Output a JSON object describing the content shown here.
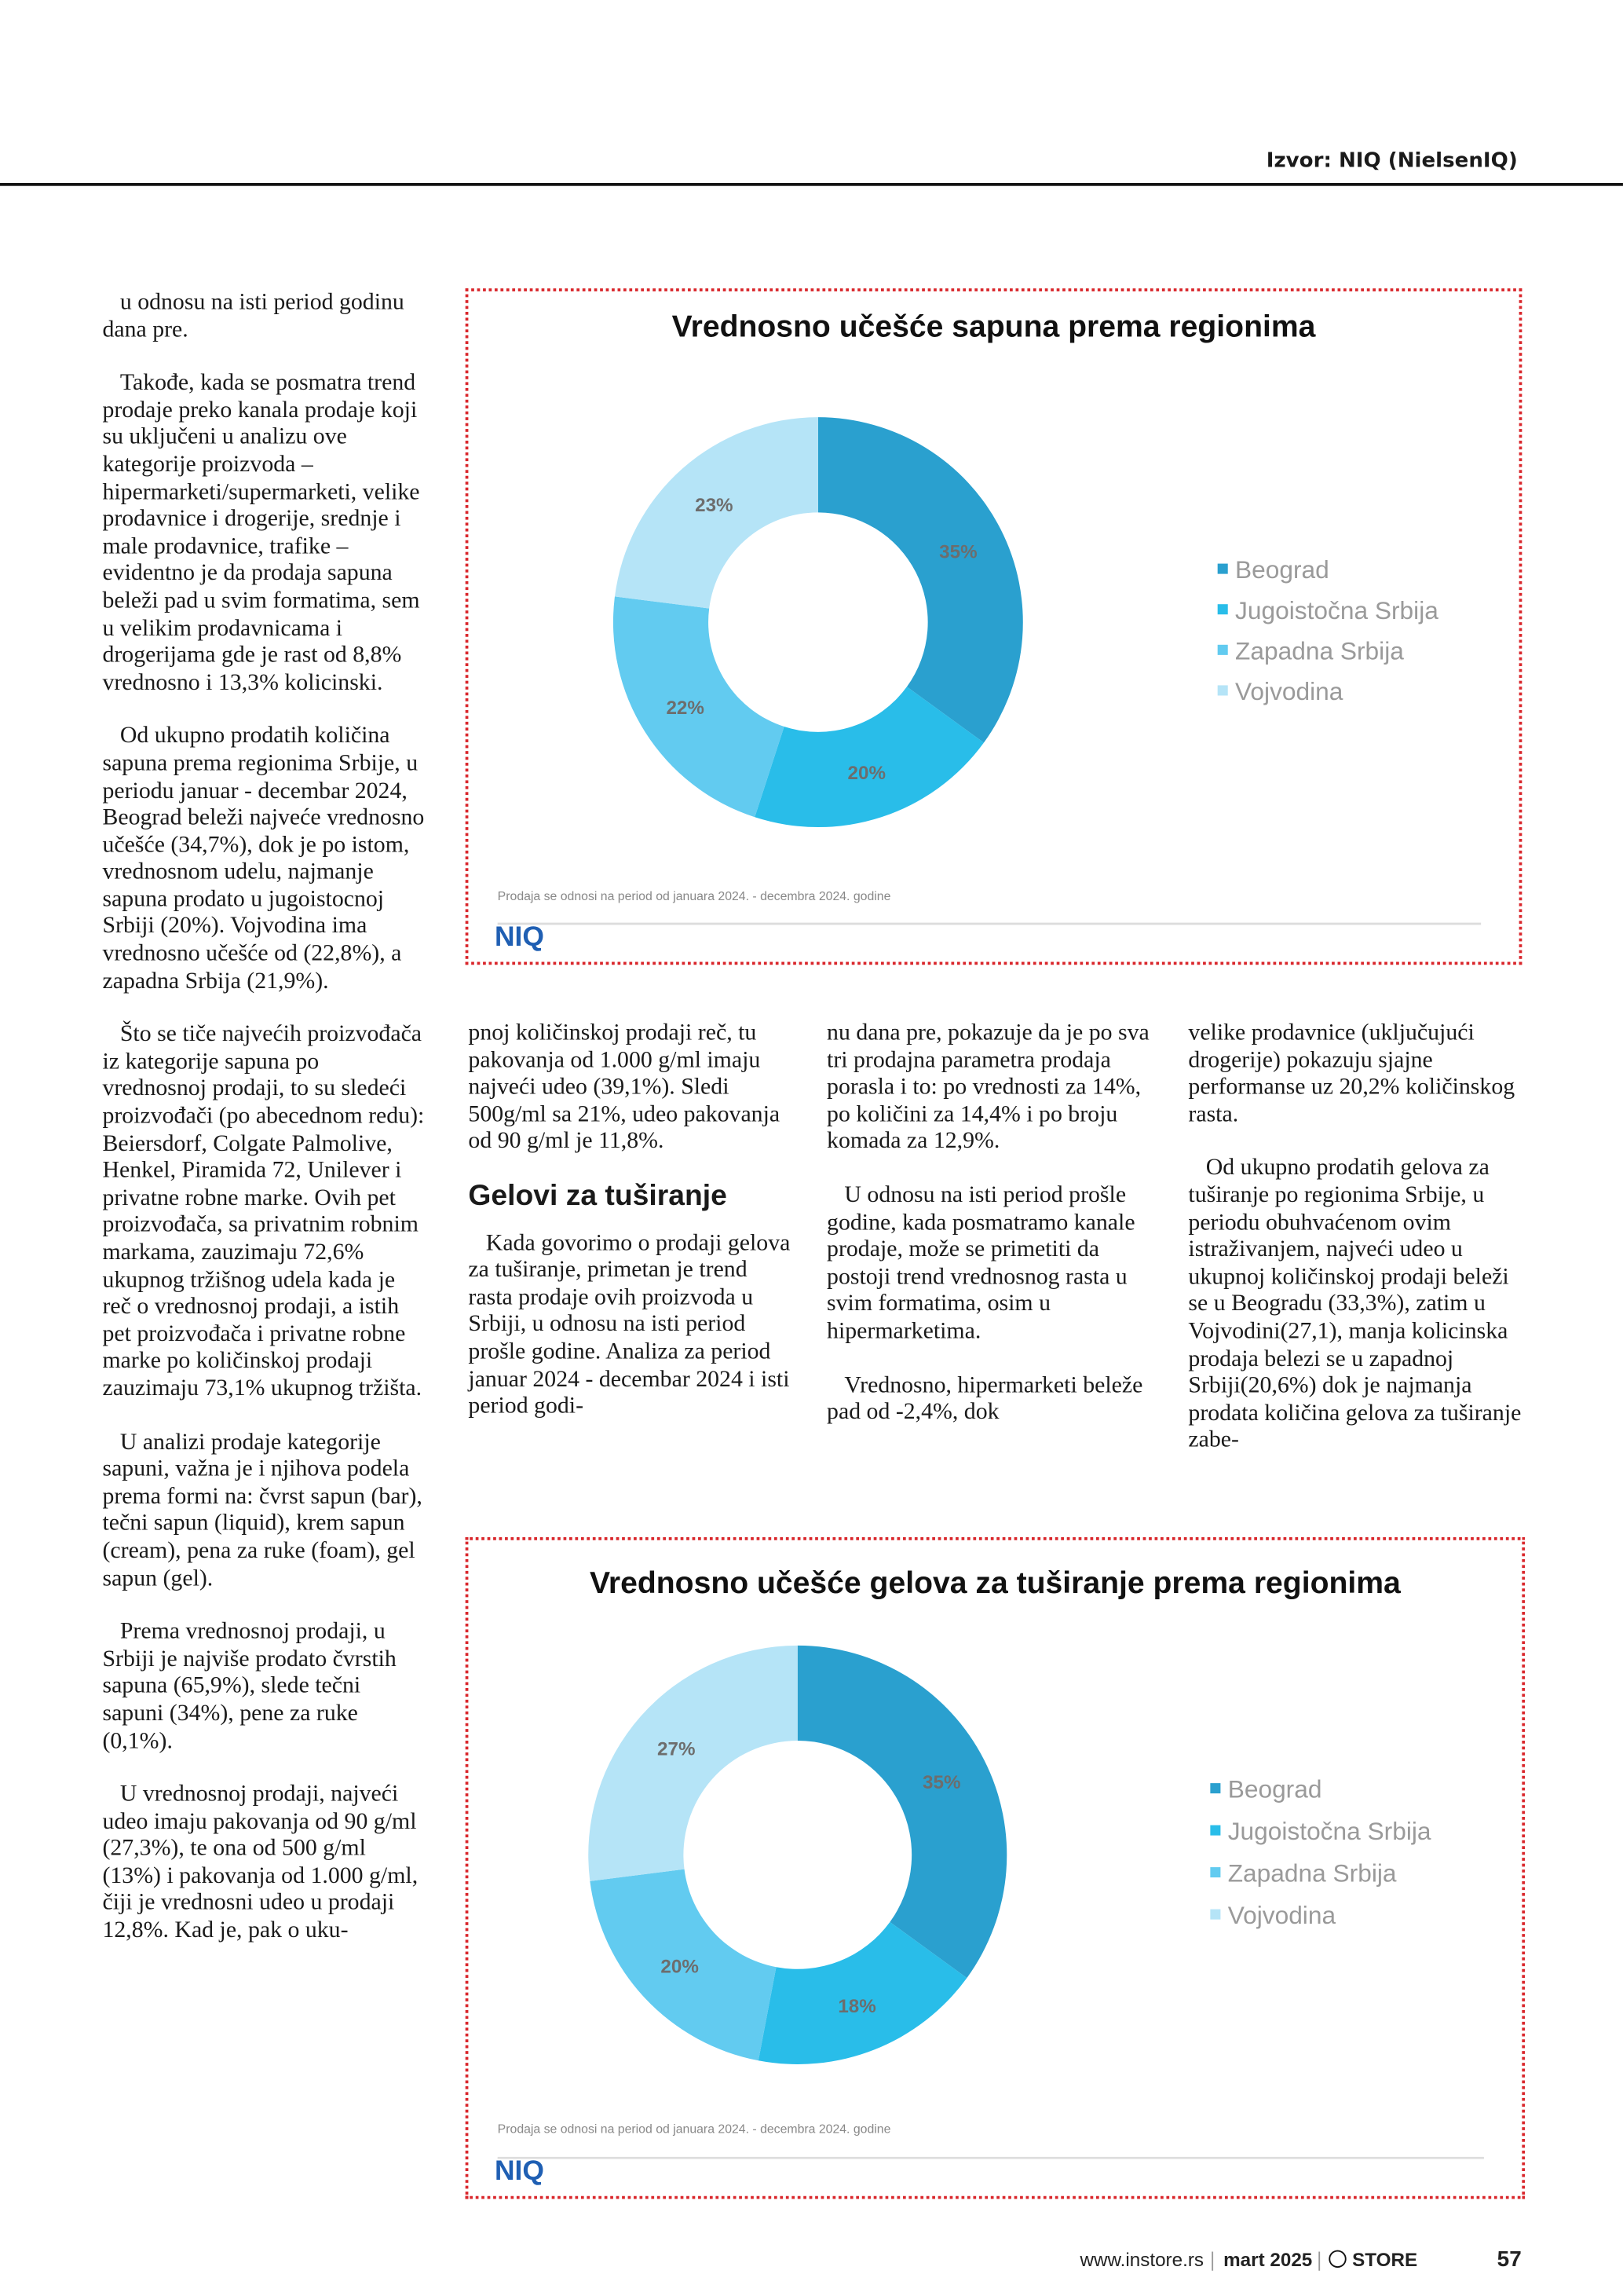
{
  "header": {
    "source": "Izvor: NIQ (NielsenIQ)"
  },
  "columns": [
    {
      "paragraphs": [
        "u odnosu na isti period godinu dana pre.",
        "Takođe, kada se posmatra trend prodaje preko kanala prodaje koji su uključeni u analizu ove kategorije proizvoda – hipermarketi/supermarketi, velike prodavnice i drogerije, srednje i male prodavnice, trafike – evidentno je da prodaja sapuna beleži pad u svim formatima, sem u velikim prodavnicama i drogerijama gde je rast od 8,8% vrednosno i 13,3% kolicinski.",
        "Od ukupno prodatih količina sapuna prema regionima Srbije, u periodu januar - decembar 2024, Beograd beleži najveće vrednosno učešće (34,7%), dok je po istom, vrednosnom udelu, najmanje sapuna prodato u jugoistocnoj Srbiji (20%). Vojvodina ima vrednosno učešće od (22,8%), a zapadna Srbija (21,9%).",
        "Što se tiče najvećih proizvođača iz kategorije sapuna po vrednosnoj prodaji, to su sledeći proizvođači (po abecednom redu): Beiersdorf, Colgate Palmolive, Henkel, Piramida 72, Unilever i privatne robne marke. Ovih pet proizvođača, sa privatnim robnim markama, zauzimaju 72,6% ukupnog tržišnog udela kada je reč o vrednosnoj prodaji, a istih pet proizvođača i privatne robne marke po količinskoj prodaji zauzimaju 73,1% ukupnog tržišta.",
        "U analizi prodaje kategorije sapuni, važna je i njihova podela prema formi na: čvrst sapun (bar), tečni sapun (liquid), krem sapun (cream), pena za ruke (foam), gel sapun (gel).",
        "Prema vrednosnoj prodaji, u Srbiji je najviše prodato čvrstih sapuna (65,9%), slede tečni sapuni (34%), pene za ruke (0,1%).",
        "U vrednosnoj prodaji, najveći udeo imaju pakovanja od 90 g/ml (27,3%), te ona od 500 g/ml (13%) i pakovanja od 1.000 g/ml, čiji je vrednosni udeo u prodaji 12,8%. Kad je, pak o uku-"
      ]
    },
    {
      "paragraphs": [
        "pnoj količinskoj prodaji reč, tu pakovanja od 1.000 g/ml imaju najveći udeo (39,1%). Sledi 500g/ml sa 21%, udeo pakovanja od 90 g/ml je 11,8%."
      ],
      "heading": "Gelovi za tuširanje",
      "paragraphs_after": [
        "Kada govorimo o prodaji gelova za tuširanje, primetan je trend rasta prodaje ovih proizvoda u Srbiji, u odnosu na isti period prošle godine. Analiza za period januar 2024 - decembar 2024 i isti period godi-"
      ]
    },
    {
      "paragraphs": [
        "nu dana pre, pokazuje da je po sva tri prodajna parametra prodaja porasla i to: po vrednosti za 14%, po količini za 14,4% i po broju komada za 12,9%.",
        "U odnosu na isti period prošle godine, kada posmatramo kanale prodaje, može se primetiti da postoji trend vrednosnog rasta u svim formatima, osim u hipermarketima.",
        "Vrednosno, hipermarketi beleže pad od -2,4%, dok"
      ]
    },
    {
      "paragraphs": [
        "velike prodavnice (uključujući drogerije) pokazuju sjajne performanse uz 20,2% količinskog rasta.",
        "Od ukupno prodatih gelova za tuširanje po regionima Srbije, u periodu obuhvaćenom ovim istraživanjem, najveći udeo u ukupnoj količinskoj prodaji beleži se u Beogradu (33,3%), zatim u Vojvodini(27,1), manja kolicinska prodaja belezi se u zapadnoj Srbiji(20,6%) dok je najmanja prodata količina gelova za tuširanje zabe-"
      ]
    }
  ],
  "charts": [
    {
      "type": "donut",
      "title": "Vrednosno učešće sapuna prema regionima",
      "categories": [
        "Beograd",
        "Jugoistočna Srbija",
        "Zapadna Srbija",
        "Vojvodina"
      ],
      "values": [
        35,
        20,
        22,
        23
      ],
      "value_labels": [
        "35%",
        "20%",
        "22%",
        "23%"
      ],
      "colors": [
        "#2aa0cf",
        "#29bde9",
        "#62cbf0",
        "#b5e4f7"
      ],
      "note": "Prodaja se odnosi na period od januara 2024. - decembra 2024. godine",
      "logo": "NIQ"
    },
    {
      "type": "donut",
      "title": "Vrednosno učešće gelova za tuširanje prema regionima",
      "categories": [
        "Beograd",
        "Jugoistočna Srbija",
        "Zapadna Srbija",
        "Vojvodina"
      ],
      "values": [
        35,
        18,
        20,
        27
      ],
      "value_labels": [
        "35%",
        "18%",
        "20%",
        "27%"
      ],
      "colors": [
        "#2aa0cf",
        "#29bde9",
        "#62cbf0",
        "#b5e4f7"
      ],
      "note": "Prodaja se odnosi na period od januara 2024. - decembra 2024. godine",
      "logo": "NIQ"
    }
  ],
  "footer": {
    "website": "www.instore.rs",
    "issue": "mart 2025",
    "brand": "STORE",
    "page": "57"
  }
}
